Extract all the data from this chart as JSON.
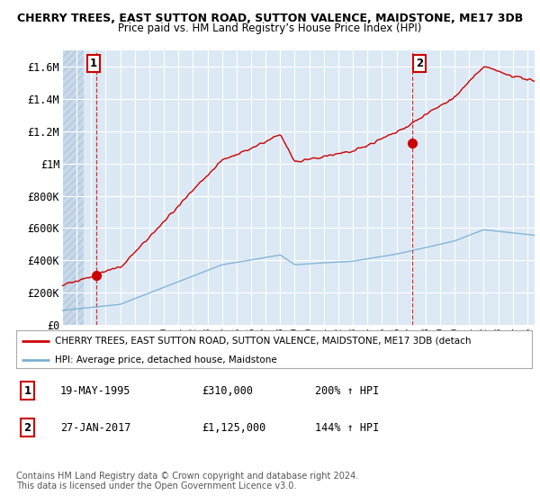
{
  "title1": "CHERRY TREES, EAST SUTTON ROAD, SUTTON VALENCE, MAIDSTONE, ME17 3DB",
  "title2": "Price paid vs. HM Land Registry’s House Price Index (HPI)",
  "ylim": [
    0,
    1700000
  ],
  "xlim_start": 1993.0,
  "xlim_end": 2025.5,
  "plot_bg_color": "#dce9f5",
  "grid_color": "#ffffff",
  "point1_x": 1995.38,
  "point1_y": 310000,
  "point1_label": "1",
  "point2_x": 2017.07,
  "point2_y": 1125000,
  "point2_label": "2",
  "red_color": "#cc0000",
  "blue_color": "#7bafd4",
  "legend_label_red": "CHERRY TREES, EAST SUTTON ROAD, SUTTON VALENCE, MAIDSTONE, ME17 3DB (detach",
  "legend_label_blue": "HPI: Average price, detached house, Maidstone",
  "annotation1_date": "19-MAY-1995",
  "annotation1_price": "£310,000",
  "annotation1_hpi": "200% ↑ HPI",
  "annotation2_date": "27-JAN-2017",
  "annotation2_price": "£1,125,000",
  "annotation2_hpi": "144% ↑ HPI",
  "footer": "Contains HM Land Registry data © Crown copyright and database right 2024.\nThis data is licensed under the Open Government Licence v3.0.",
  "yticks": [
    0,
    200000,
    400000,
    600000,
    800000,
    1000000,
    1200000,
    1400000,
    1600000
  ],
  "ytick_labels": [
    "£0",
    "£200K",
    "£400K",
    "£600K",
    "£800K",
    "£1M",
    "£1.2M",
    "£1.4M",
    "£1.6M"
  ]
}
